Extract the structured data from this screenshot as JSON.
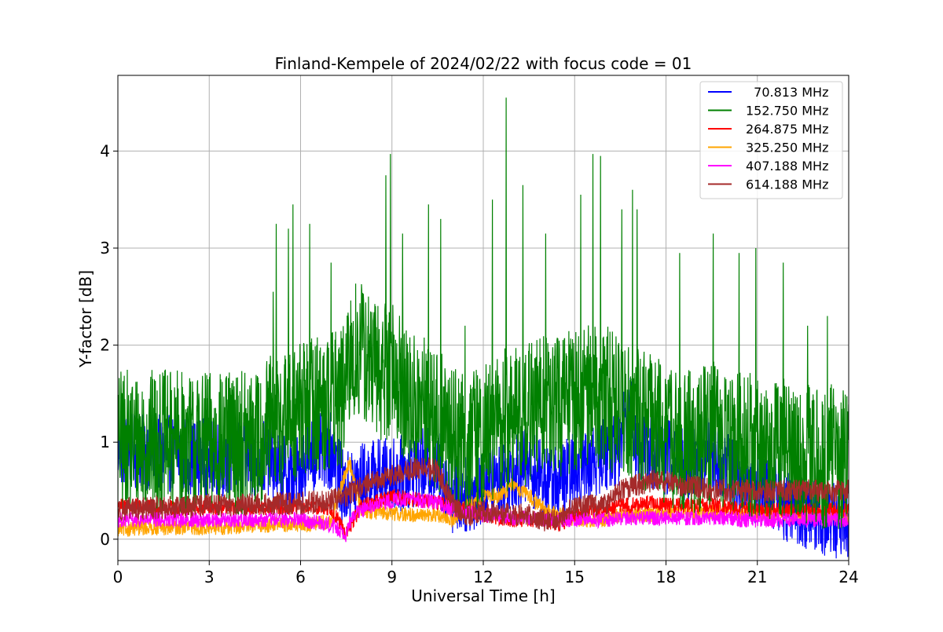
{
  "chart_data": {
    "type": "line",
    "title": "Finland-Kempele of 2024/02/22 with focus code = 01",
    "xlabel": "Universal Time [h]",
    "ylabel": "Y-factor [dB]",
    "xlim": [
      0,
      24
    ],
    "ylim": [
      -0.22,
      4.78
    ],
    "xticks": [
      0,
      3,
      6,
      9,
      12,
      15,
      18,
      21,
      24
    ],
    "yticks": [
      0,
      1,
      2,
      3,
      4
    ],
    "grid": true,
    "legend_position": "top-right",
    "series": [
      {
        "name": "  70.813 MHz",
        "color": "#0000ff",
        "x": [
          0,
          0.5,
          1,
          1.5,
          2,
          2.5,
          3,
          3.5,
          4,
          4.5,
          5,
          5.3,
          5.6,
          5.9,
          6.2,
          6.5,
          6.8,
          7.1,
          7.4,
          7.7,
          8,
          8.5,
          9,
          9.5,
          10,
          10.5,
          11,
          11.5,
          12,
          12.5,
          13,
          13.5,
          14,
          14.5,
          15,
          15.5,
          16,
          16.5,
          16.8,
          17,
          17.5,
          18,
          18.5,
          19,
          19.5,
          20,
          20.5,
          21,
          21.5,
          22,
          22.5,
          23,
          23.5,
          24
        ],
        "y": [
          0.95,
          0.9,
          0.9,
          0.88,
          0.88,
          0.85,
          0.85,
          0.83,
          0.82,
          0.82,
          0.85,
          0.7,
          0.65,
          0.68,
          0.85,
          0.9,
          0.92,
          0.9,
          0.5,
          0.55,
          0.6,
          0.65,
          0.65,
          0.7,
          0.75,
          0.75,
          0.45,
          0.45,
          0.55,
          0.6,
          0.7,
          0.75,
          0.6,
          0.6,
          0.7,
          0.8,
          0.9,
          0.95,
          1.5,
          1.0,
          0.9,
          0.85,
          0.8,
          0.75,
          0.9,
          0.7,
          0.6,
          0.55,
          0.5,
          0.35,
          0.3,
          0.25,
          0.2,
          0.2
        ],
        "band": 0.4
      },
      {
        "name": "152.750 MHz",
        "color": "#008000",
        "x": [
          0,
          0.5,
          1,
          1.5,
          2,
          2.5,
          3,
          3.5,
          4,
          4.5,
          5,
          5.3,
          5.6,
          5.9,
          6.2,
          6.5,
          6.8,
          7.1,
          7.4,
          7.7,
          8,
          8.5,
          9,
          9.5,
          10,
          10.5,
          11,
          11.5,
          12,
          12.5,
          13,
          13.5,
          14,
          14.5,
          15,
          15.5,
          16,
          16.5,
          16.8,
          17,
          17.5,
          18,
          18.5,
          19,
          19.5,
          20,
          20.5,
          21,
          21.5,
          22,
          22.5,
          23,
          23.5,
          24
        ],
        "y": [
          1.0,
          1.0,
          1.0,
          1.0,
          1.0,
          0.98,
          0.98,
          0.98,
          1.0,
          1.0,
          1.15,
          1.2,
          1.25,
          1.3,
          1.35,
          1.4,
          1.4,
          1.45,
          1.45,
          1.9,
          1.95,
          1.7,
          1.8,
          1.4,
          1.35,
          1.2,
          1.1,
          1.0,
          1.05,
          1.2,
          1.25,
          1.3,
          1.4,
          1.35,
          1.45,
          1.5,
          1.45,
          1.4,
          1.4,
          1.3,
          1.2,
          1.1,
          1.0,
          1.0,
          1.1,
          1.0,
          1.0,
          0.95,
          0.95,
          0.9,
          0.85,
          0.85,
          0.85,
          0.85
        ],
        "band": 0.75,
        "spikes": [
          [
            5.1,
            2.55
          ],
          [
            5.2,
            3.25
          ],
          [
            5.6,
            3.2
          ],
          [
            5.75,
            3.45
          ],
          [
            6.3,
            3.25
          ],
          [
            7.0,
            2.85
          ],
          [
            8.8,
            3.75
          ],
          [
            8.95,
            3.97
          ],
          [
            9.35,
            3.15
          ],
          [
            10.2,
            3.45
          ],
          [
            10.6,
            3.3
          ],
          [
            11.4,
            2.2
          ],
          [
            12.3,
            3.5
          ],
          [
            12.75,
            4.55
          ],
          [
            13.3,
            3.65
          ],
          [
            14.05,
            3.15
          ],
          [
            15.2,
            3.55
          ],
          [
            15.6,
            3.97
          ],
          [
            15.85,
            3.95
          ],
          [
            16.55,
            3.4
          ],
          [
            16.9,
            3.6
          ],
          [
            17.05,
            3.4
          ],
          [
            18.45,
            2.95
          ],
          [
            19.55,
            3.15
          ],
          [
            20.4,
            2.95
          ],
          [
            20.95,
            3.0
          ],
          [
            21.85,
            2.85
          ],
          [
            22.65,
            2.2
          ],
          [
            23.3,
            2.3
          ]
        ]
      },
      {
        "name": "264.875 MHz",
        "color": "#ff0000",
        "x": [
          0,
          1,
          2,
          3,
          4,
          5,
          6,
          7,
          7.5,
          8,
          8.5,
          9,
          9.5,
          10,
          10.5,
          11,
          11.5,
          12,
          12.5,
          13,
          13.5,
          14,
          14.5,
          15,
          15.5,
          16,
          16.5,
          17,
          17.5,
          18,
          18.5,
          19,
          19.5,
          20,
          20.5,
          21,
          21.5,
          22,
          22.5,
          23,
          23.5,
          24
        ],
        "y": [
          0.35,
          0.33,
          0.32,
          0.32,
          0.32,
          0.33,
          0.33,
          0.32,
          0.05,
          0.35,
          0.38,
          0.45,
          0.42,
          0.4,
          0.38,
          0.35,
          0.3,
          0.25,
          0.22,
          0.2,
          0.2,
          0.2,
          0.15,
          0.25,
          0.3,
          0.3,
          0.35,
          0.35,
          0.38,
          0.35,
          0.35,
          0.35,
          0.35,
          0.33,
          0.32,
          0.3,
          0.3,
          0.3,
          0.3,
          0.3,
          0.3,
          0.3
        ],
        "band": 0.08
      },
      {
        "name": "325.250 MHz",
        "color": "#ffa500",
        "x": [
          0,
          1,
          2,
          3,
          4,
          5,
          6,
          7,
          7.3,
          7.6,
          8,
          8.5,
          9,
          9.5,
          10,
          10.5,
          11,
          11.5,
          12,
          12.5,
          13,
          13.5,
          14,
          14.5,
          15,
          15.5,
          16,
          16.5,
          17,
          17.5,
          18,
          18.5,
          19,
          19.5,
          20,
          20.5,
          21,
          21.5,
          22,
          22.5,
          23,
          23.5,
          24
        ],
        "y": [
          0.1,
          0.12,
          0.12,
          0.12,
          0.13,
          0.15,
          0.15,
          0.18,
          0.5,
          0.8,
          0.3,
          0.28,
          0.27,
          0.25,
          0.25,
          0.25,
          0.2,
          0.35,
          0.45,
          0.45,
          0.55,
          0.45,
          0.3,
          0.25,
          0.2,
          0.2,
          0.2,
          0.25,
          0.25,
          0.25,
          0.28,
          0.28,
          0.28,
          0.28,
          0.28,
          0.27,
          0.27,
          0.27,
          0.25,
          0.25,
          0.25,
          0.25,
          0.25
        ],
        "band": 0.08
      },
      {
        "name": "407.188 MHz",
        "color": "#ff00ff",
        "x": [
          0,
          1,
          2,
          3,
          4,
          5,
          6,
          7,
          7.5,
          7.7,
          8,
          8.5,
          9,
          9.5,
          10,
          10.5,
          11,
          11.5,
          12,
          12.5,
          13,
          13.5,
          14,
          14.5,
          15,
          15.5,
          16,
          16.5,
          17,
          17.5,
          18,
          18.5,
          19,
          19.5,
          20,
          20.5,
          21,
          21.5,
          22,
          22.5,
          23,
          23.5,
          24
        ],
        "y": [
          0.2,
          0.2,
          0.2,
          0.2,
          0.2,
          0.2,
          0.2,
          0.15,
          0.05,
          0.25,
          0.3,
          0.35,
          0.4,
          0.42,
          0.4,
          0.38,
          0.3,
          0.28,
          0.25,
          0.25,
          0.22,
          0.22,
          0.2,
          0.2,
          0.2,
          0.2,
          0.2,
          0.22,
          0.22,
          0.22,
          0.22,
          0.22,
          0.22,
          0.22,
          0.22,
          0.2,
          0.2,
          0.2,
          0.2,
          0.2,
          0.2,
          0.2,
          0.2
        ],
        "band": 0.08
      },
      {
        "name": "614.188 MHz",
        "color": "#a52a2a",
        "x": [
          0,
          1,
          2,
          3,
          4,
          5,
          6,
          7,
          7.5,
          8,
          8.5,
          9,
          9.5,
          10,
          10.5,
          11,
          11.5,
          12,
          12.5,
          13,
          13.5,
          14,
          14.5,
          15,
          15.5,
          16,
          16.5,
          17,
          17.5,
          18,
          18.5,
          19,
          19.5,
          20,
          20.5,
          21,
          21.5,
          22,
          22.5,
          23,
          23.5,
          24
        ],
        "y": [
          0.3,
          0.32,
          0.33,
          0.35,
          0.35,
          0.36,
          0.37,
          0.4,
          0.45,
          0.55,
          0.6,
          0.65,
          0.7,
          0.75,
          0.7,
          0.35,
          0.25,
          0.3,
          0.25,
          0.25,
          0.25,
          0.2,
          0.2,
          0.35,
          0.35,
          0.35,
          0.5,
          0.55,
          0.6,
          0.6,
          0.55,
          0.55,
          0.5,
          0.5,
          0.5,
          0.5,
          0.5,
          0.5,
          0.5,
          0.5,
          0.5,
          0.5
        ],
        "band": 0.12
      }
    ]
  }
}
